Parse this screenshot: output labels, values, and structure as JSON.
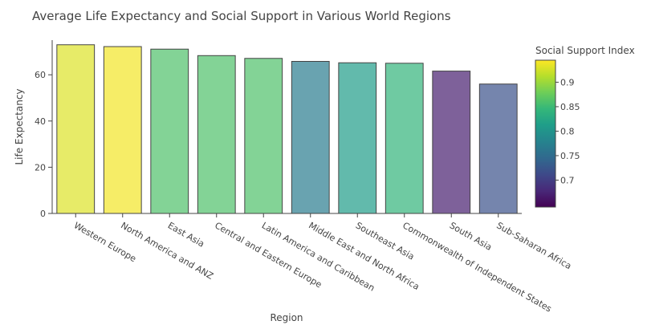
{
  "chart_data": {
    "type": "bar",
    "title": "Average Life Expectancy and Social Support in Various World Regions",
    "xlabel": "Region",
    "ylabel": "Life Expectancy",
    "ylim": [
      0,
      75
    ],
    "yticks": [
      0,
      20,
      40,
      60
    ],
    "grid": false,
    "categories": [
      "Western Europe",
      "North America and ANZ",
      "East Asia",
      "Central and Eastern Europe",
      "Latin America and Caribbean",
      "Middle East and North Africa",
      "Southeast Asia",
      "Commonwealth of Independent States",
      "South Asia",
      "Sub-Saharan Africa"
    ],
    "values": [
      73.0,
      72.2,
      71.1,
      68.3,
      67.1,
      65.8,
      65.2,
      65.0,
      61.6,
      56.0
    ],
    "color_values": [
      0.93,
      0.94,
      0.86,
      0.86,
      0.86,
      0.77,
      0.81,
      0.84,
      0.67,
      0.72
    ],
    "colorbar": {
      "title": "Social Support Index",
      "range": [
        0.645,
        0.945
      ],
      "ticks": [
        0.7,
        0.75,
        0.8,
        0.85,
        0.9
      ],
      "tick_labels": [
        "0.7",
        "0.75",
        "0.8",
        "0.85",
        "0.9"
      ],
      "colorscale": "viridis",
      "placement": "right"
    },
    "bar_opacity": 0.7,
    "bar_outline_color": "#444444"
  }
}
